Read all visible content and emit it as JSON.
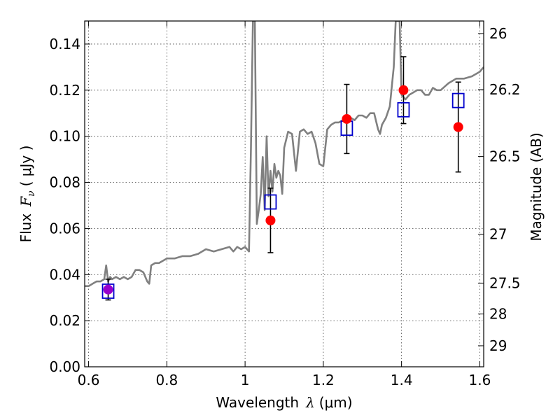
{
  "chart_data": {
    "type": "scatter",
    "title": "",
    "xlabel": "Wavelength",
    "xlabel_symbol": "λ",
    "xlabel_unit": "(μm)",
    "ylabel": "Flux",
    "ylabel_symbol": "F",
    "ylabel_subscript": "ν",
    "ylabel_unit": "( μJy )",
    "y2label": "Magnitude (AB)",
    "xlim": [
      0.59,
      1.61
    ],
    "ylim": [
      0.0,
      0.15
    ],
    "grid": true,
    "x_ticks": [
      0.6,
      0.8,
      1.0,
      1.2,
      1.4,
      1.6
    ],
    "x_tick_labels": [
      "0.6",
      "0.8",
      "1",
      "1.2",
      "1.4",
      "1.6"
    ],
    "y_ticks": [
      0.0,
      0.02,
      0.04,
      0.06,
      0.08,
      0.1,
      0.12,
      0.14
    ],
    "y_tick_labels": [
      "0.00",
      "0.02",
      "0.04",
      "0.06",
      "0.08",
      "0.10",
      "0.12",
      "0.14"
    ],
    "y2_ticks": [
      26.0,
      26.2,
      26.5,
      27.0,
      27.5,
      28.0,
      29.0
    ],
    "y2_tick_labels": [
      "26",
      "26.2",
      "26.5",
      "27",
      "27.5",
      "28",
      "29"
    ],
    "colors": {
      "spectrum": "#808080",
      "observed": "#ff0000",
      "model": "#0000cc",
      "overlap": "#9900cc",
      "errorbar": "#000000"
    },
    "spectrum": {
      "x": [
        0.59,
        0.6,
        0.61,
        0.62,
        0.63,
        0.64,
        0.645,
        0.65,
        0.655,
        0.66,
        0.67,
        0.68,
        0.69,
        0.7,
        0.71,
        0.72,
        0.73,
        0.74,
        0.75,
        0.755,
        0.76,
        0.77,
        0.78,
        0.79,
        0.8,
        0.82,
        0.84,
        0.86,
        0.88,
        0.9,
        0.92,
        0.94,
        0.96,
        0.97,
        0.98,
        0.99,
        1.0,
        1.01,
        1.015,
        1.02,
        1.025,
        1.03,
        1.035,
        1.04,
        1.045,
        1.05,
        1.055,
        1.06,
        1.065,
        1.07,
        1.075,
        1.08,
        1.085,
        1.09,
        1.095,
        1.1,
        1.11,
        1.12,
        1.13,
        1.14,
        1.15,
        1.16,
        1.17,
        1.18,
        1.19,
        1.2,
        1.21,
        1.22,
        1.23,
        1.24,
        1.25,
        1.26,
        1.27,
        1.28,
        1.29,
        1.3,
        1.31,
        1.32,
        1.33,
        1.34,
        1.345,
        1.35,
        1.36,
        1.37,
        1.38,
        1.385,
        1.39,
        1.395,
        1.4,
        1.41,
        1.42,
        1.43,
        1.44,
        1.45,
        1.46,
        1.47,
        1.48,
        1.49,
        1.5,
        1.52,
        1.54,
        1.56,
        1.58,
        1.6,
        1.61
      ],
      "y": [
        0.035,
        0.035,
        0.036,
        0.037,
        0.037,
        0.038,
        0.044,
        0.037,
        0.039,
        0.038,
        0.039,
        0.038,
        0.039,
        0.038,
        0.039,
        0.042,
        0.042,
        0.041,
        0.037,
        0.036,
        0.044,
        0.045,
        0.045,
        0.046,
        0.047,
        0.047,
        0.048,
        0.048,
        0.049,
        0.051,
        0.05,
        0.051,
        0.052,
        0.05,
        0.052,
        0.051,
        0.052,
        0.05,
        0.095,
        0.15,
        0.15,
        0.062,
        0.068,
        0.075,
        0.091,
        0.068,
        0.1,
        0.074,
        0.085,
        0.076,
        0.088,
        0.082,
        0.085,
        0.083,
        0.075,
        0.095,
        0.102,
        0.101,
        0.085,
        0.102,
        0.103,
        0.101,
        0.102,
        0.097,
        0.088,
        0.087,
        0.103,
        0.105,
        0.106,
        0.106,
        0.107,
        0.107,
        0.108,
        0.107,
        0.109,
        0.109,
        0.108,
        0.11,
        0.11,
        0.103,
        0.101,
        0.105,
        0.108,
        0.113,
        0.13,
        0.15,
        0.15,
        0.15,
        0.118,
        0.116,
        0.118,
        0.119,
        0.12,
        0.12,
        0.118,
        0.118,
        0.121,
        0.12,
        0.12,
        0.123,
        0.125,
        0.125,
        0.126,
        0.128,
        0.13
      ]
    },
    "points": [
      {
        "x": 0.65,
        "y": 0.0335,
        "err": 0.0045,
        "model": 0.0328
      },
      {
        "x": 1.065,
        "y": 0.0635,
        "err": 0.014,
        "model": 0.0715
      },
      {
        "x": 1.26,
        "y": 0.1075,
        "err": 0.015,
        "model": 0.1035
      },
      {
        "x": 1.405,
        "y": 0.12,
        "err": 0.0145,
        "model": 0.1115
      },
      {
        "x": 1.545,
        "y": 0.104,
        "err": 0.0195,
        "model": 0.1155
      }
    ]
  }
}
